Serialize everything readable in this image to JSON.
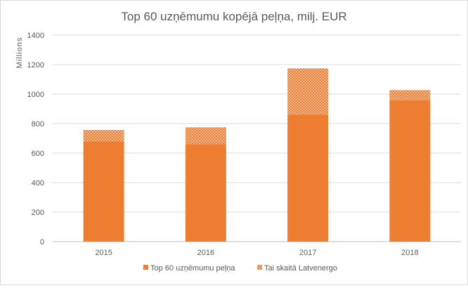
{
  "chart_data": {
    "type": "bar",
    "stacked": true,
    "title": "Top 60 uzņēmumu kopējā peļņa, milj. EUR",
    "ylabel": "Millions",
    "xlabel": "",
    "categories": [
      "2015",
      "2016",
      "2017",
      "2018"
    ],
    "ylim": [
      0,
      1400
    ],
    "yticks": [
      0,
      200,
      400,
      600,
      800,
      1000,
      1200,
      1400
    ],
    "grid": true,
    "legend_position": "bottom",
    "series": [
      {
        "name": "Top 60 uzņēmumu peļņa",
        "values": [
          680,
          660,
          860,
          960
        ],
        "color": "#ED7D31",
        "pattern": "solid"
      },
      {
        "name": "Tai skaitā Latvenergo",
        "values": [
          77,
          115,
          315,
          67
        ],
        "color": "#ED7D31",
        "pattern": "dotted"
      }
    ],
    "totals": [
      757,
      775,
      1175,
      1027
    ]
  }
}
